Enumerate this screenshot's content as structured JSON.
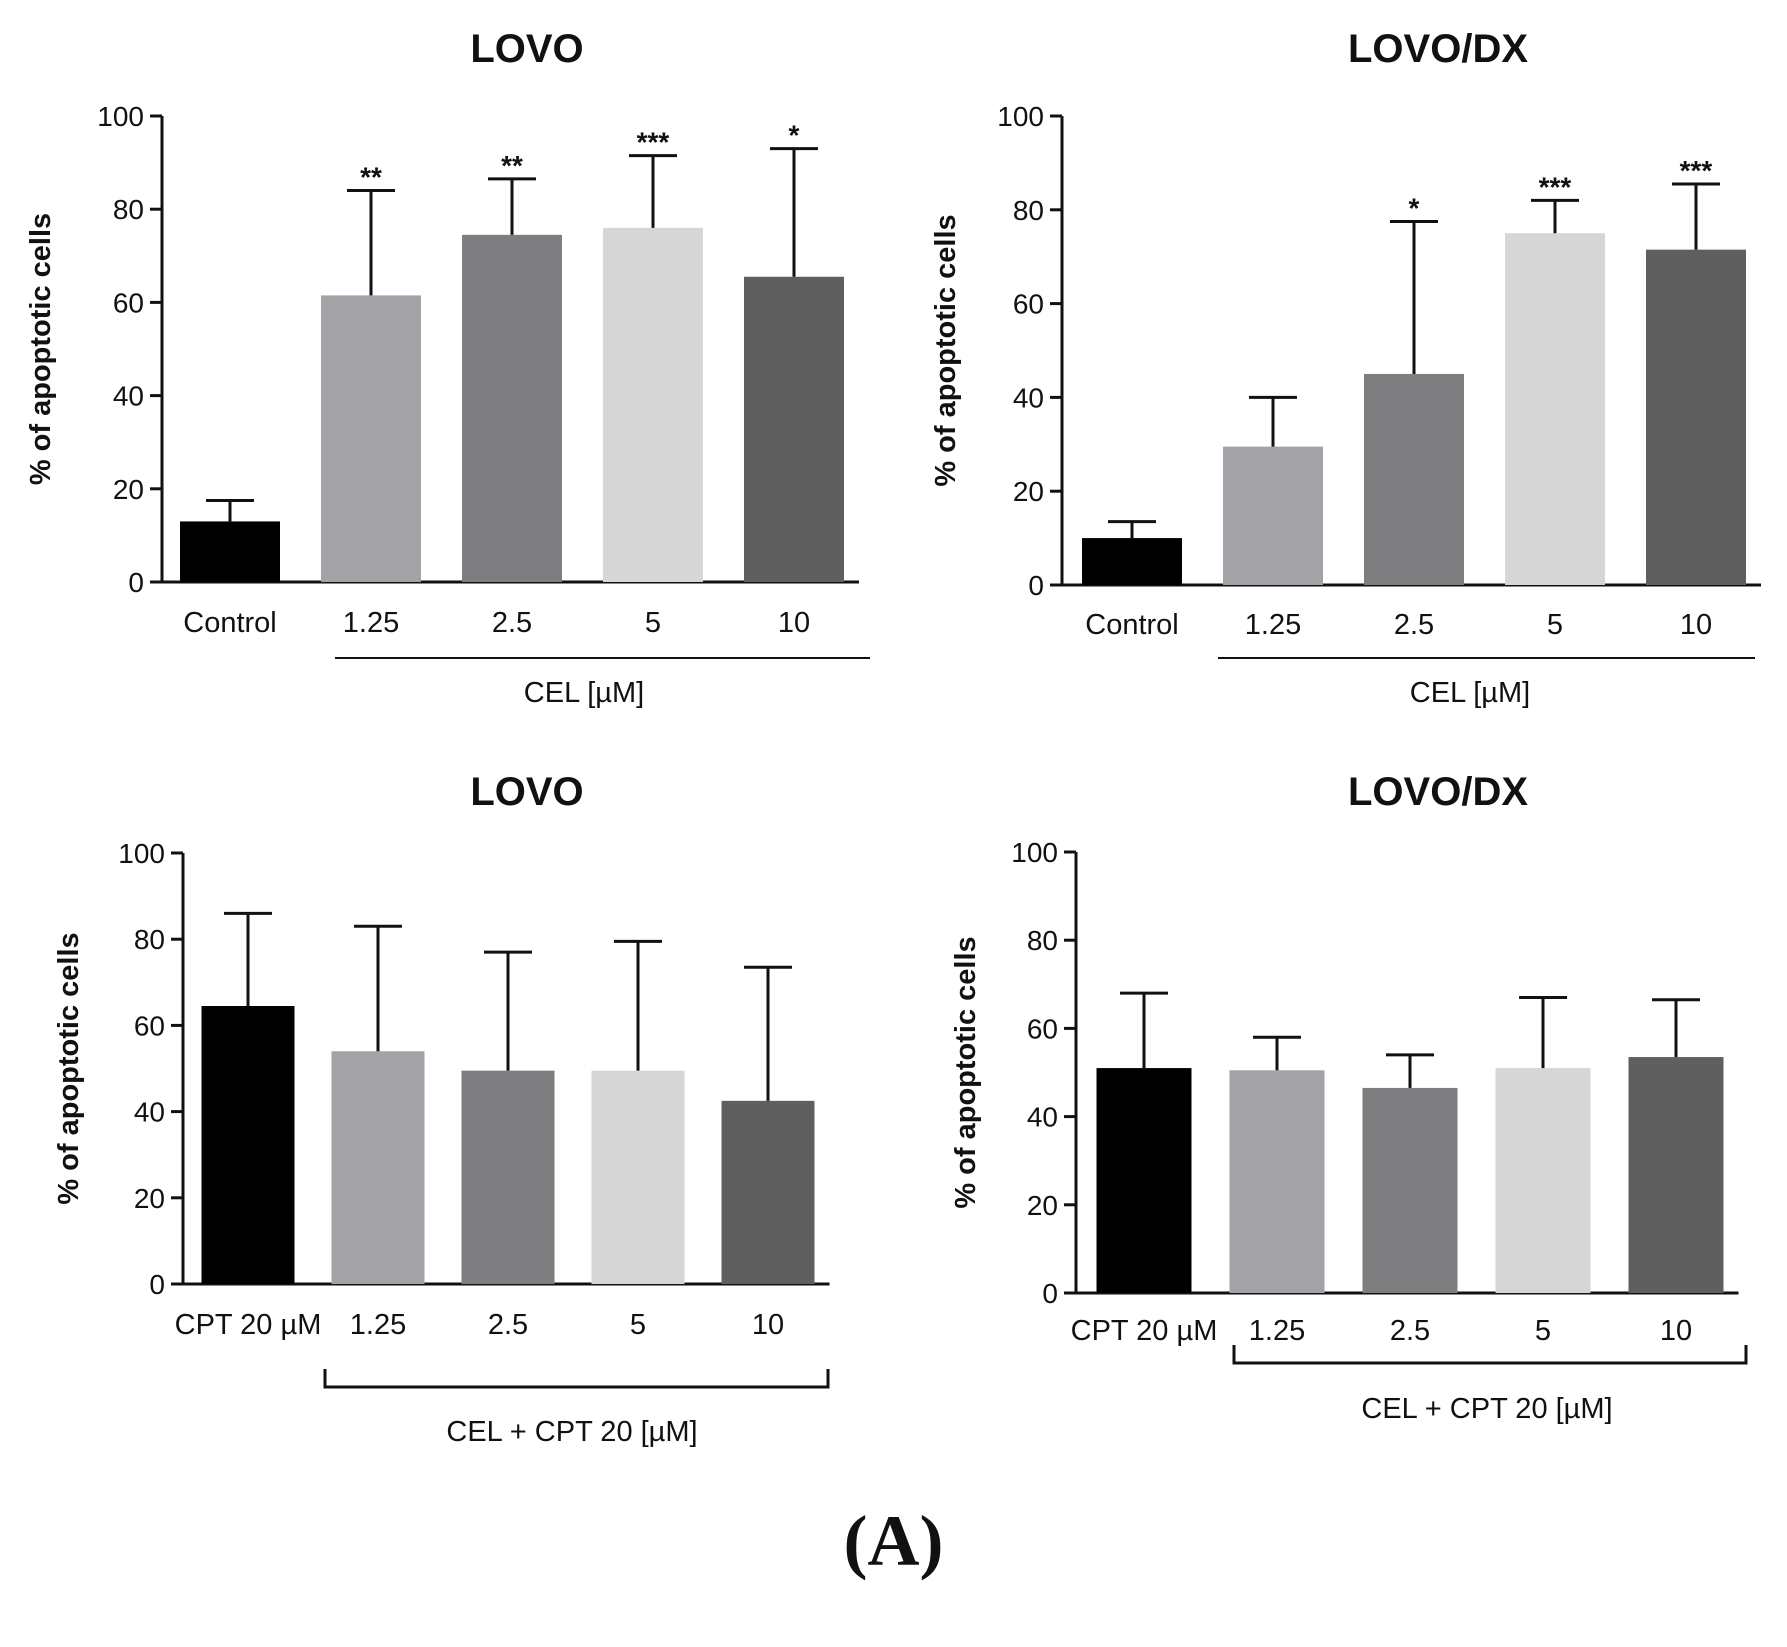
{
  "figure_label": "(A)",
  "palette": [
    "#000000",
    "#a3a3a7",
    "#7e7e80",
    "#d6d6d6",
    "#5f5f5f"
  ],
  "chart_data": [
    {
      "type": "bar",
      "title": "LOVO",
      "ylabel": "% of apoptotic cells",
      "ylim": [
        0,
        100
      ],
      "yticks": [
        "0",
        "20",
        "40",
        "60",
        "80",
        "100"
      ],
      "categories": [
        "Control",
        "1.25",
        "2.5",
        "5",
        "10"
      ],
      "values": [
        13,
        61.5,
        74.5,
        76,
        65.5
      ],
      "errors": [
        4.5,
        22.5,
        12,
        15.5,
        27.5
      ],
      "significance": [
        "",
        "**",
        "**",
        "***",
        "*"
      ],
      "group_label": "CEL [µM]",
      "bracket": "line"
    },
    {
      "type": "bar",
      "title": "LOVO/DX",
      "ylabel": "% of apoptotic cells",
      "ylim": [
        0,
        100
      ],
      "yticks": [
        "0",
        "20",
        "40",
        "60",
        "80",
        "100"
      ],
      "categories": [
        "Control",
        "1.25",
        "2.5",
        "5",
        "10"
      ],
      "values": [
        10,
        29.5,
        45,
        75,
        71.5
      ],
      "errors": [
        3.5,
        10.5,
        32.5,
        7,
        14
      ],
      "significance": [
        "",
        "",
        "*",
        "***",
        "***"
      ],
      "group_label": "CEL [µM]",
      "bracket": "line"
    },
    {
      "type": "bar",
      "title": "LOVO",
      "ylabel": "% of apoptotic cells",
      "ylim": [
        0,
        100
      ],
      "yticks": [
        "0",
        "20",
        "40",
        "60",
        "80",
        "100"
      ],
      "categories": [
        "CPT 20 µM",
        "1.25",
        "2.5",
        "5",
        "10"
      ],
      "values": [
        64.5,
        54,
        49.5,
        49.5,
        42.5
      ],
      "errors": [
        21.5,
        29,
        27.5,
        30,
        31
      ],
      "significance": [
        "",
        "",
        "",
        "",
        ""
      ],
      "group_label": "CEL + CPT 20 [µM]",
      "bracket": "bracket"
    },
    {
      "type": "bar",
      "title": "LOVO/DX",
      "ylabel": "% of apoptotic cells",
      "ylim": [
        0,
        100
      ],
      "yticks": [
        "0",
        "20",
        "40",
        "60",
        "80",
        "100"
      ],
      "categories": [
        "CPT 20 µM",
        "1.25",
        "2.5",
        "5",
        "10"
      ],
      "values": [
        51,
        50.5,
        46.5,
        51,
        53.5
      ],
      "errors": [
        17,
        7.5,
        7.5,
        16,
        13
      ],
      "significance": [
        "",
        "",
        "",
        "",
        ""
      ],
      "group_label": "CEL + CPT 20 [µM]",
      "bracket": "bracket"
    }
  ]
}
